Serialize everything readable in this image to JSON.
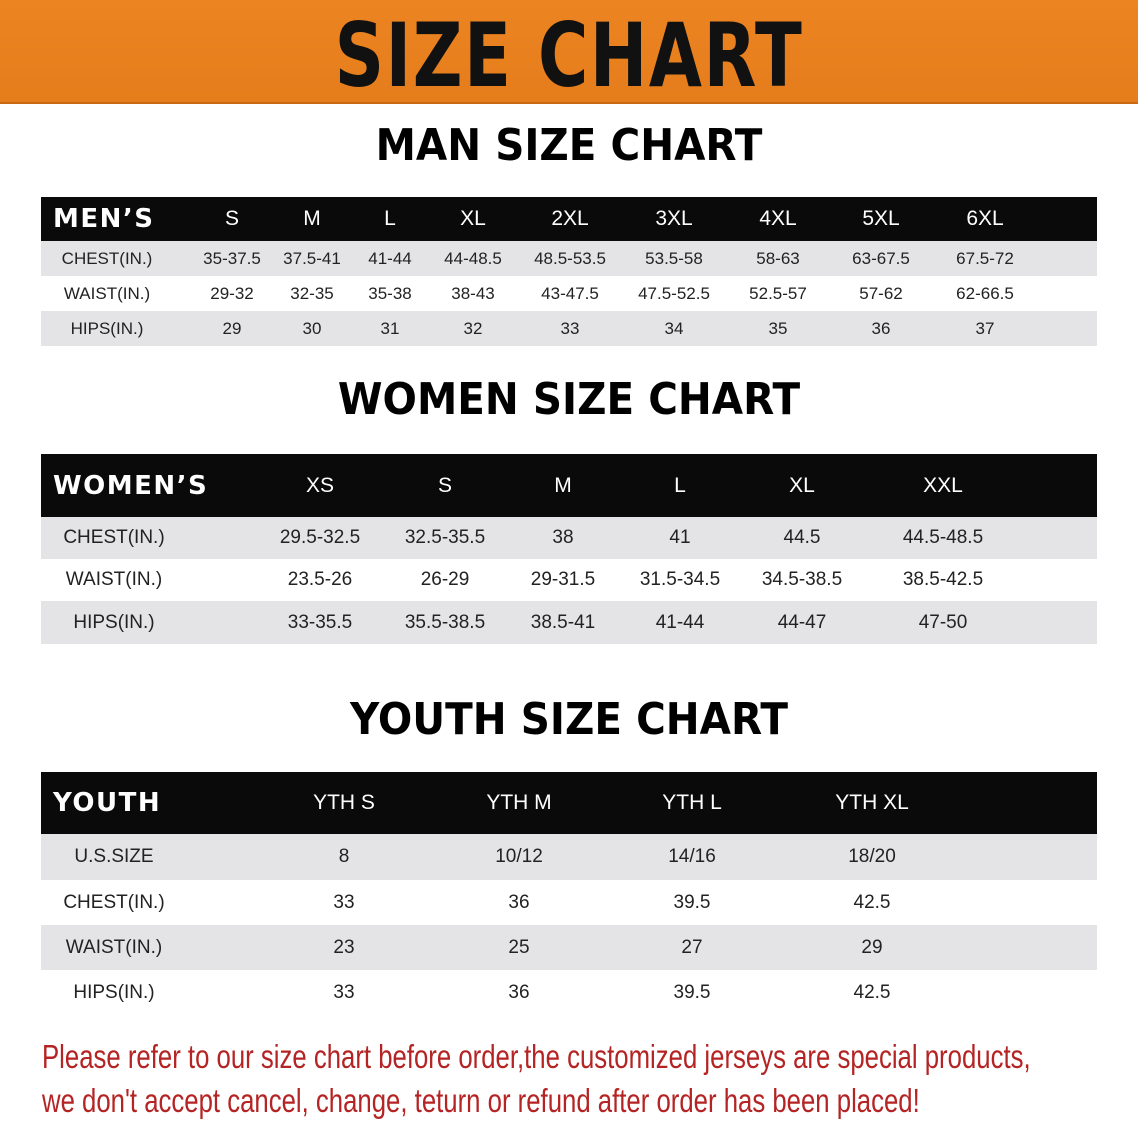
{
  "banner": {
    "title": "SIZE CHART",
    "color": "#e98220"
  },
  "men": {
    "title": "MAN SIZE CHART",
    "header": [
      "MEN’S",
      "S",
      "M",
      "L",
      "XL",
      "2XL",
      "3XL",
      "4XL",
      "5XL",
      "6XL"
    ],
    "rows": [
      [
        "CHEST(IN.)",
        "35-37.5",
        "37.5-41",
        "41-44",
        "44-48.5",
        "48.5-53.5",
        "53.5-58",
        "58-63",
        "63-67.5",
        "67.5-72"
      ],
      [
        "WAIST(IN.)",
        "29-32",
        "32-35",
        "35-38",
        "38-43",
        "43-47.5",
        "47.5-52.5",
        "52.5-57",
        "57-62",
        "62-66.5"
      ],
      [
        "HIPS(IN.)",
        "29",
        "30",
        "31",
        "32",
        "33",
        "34",
        "35",
        "36",
        "37"
      ]
    ]
  },
  "women": {
    "title": "WOMEN SIZE CHART",
    "header": [
      "WOMEN’S",
      "XS",
      "S",
      "M",
      "L",
      "XL",
      "XXL"
    ],
    "rows": [
      [
        "CHEST(IN.)",
        "29.5-32.5",
        "32.5-35.5",
        "38",
        "41",
        "44.5",
        "44.5-48.5"
      ],
      [
        "WAIST(IN.)",
        "23.5-26",
        "26-29",
        "29-31.5",
        "31.5-34.5",
        "34.5-38.5",
        "38.5-42.5"
      ],
      [
        "HIPS(IN.)",
        "33-35.5",
        "35.5-38.5",
        "38.5-41",
        "41-44",
        "44-47",
        "47-50"
      ]
    ]
  },
  "youth": {
    "title": "YOUTH SIZE CHART",
    "header": [
      "YOUTH",
      "YTH S",
      "YTH M",
      "YTH L",
      "YTH XL"
    ],
    "rows": [
      [
        "U.S.SIZE",
        "8",
        "10/12",
        "14/16",
        "18/20"
      ],
      [
        "CHEST(IN.)",
        "33",
        "36",
        "39.5",
        "42.5"
      ],
      [
        "WAIST(IN.)",
        "23",
        "25",
        "27",
        "29"
      ],
      [
        "HIPS(IN.)",
        "33",
        "36",
        "39.5",
        "42.5"
      ]
    ]
  },
  "notice": {
    "line1": "Please refer to our size chart before order,the customized jerseys are special products,",
    "line2": "we don't accept cancel, change, teturn or refund after order has been placed!",
    "color": "#b52424"
  }
}
